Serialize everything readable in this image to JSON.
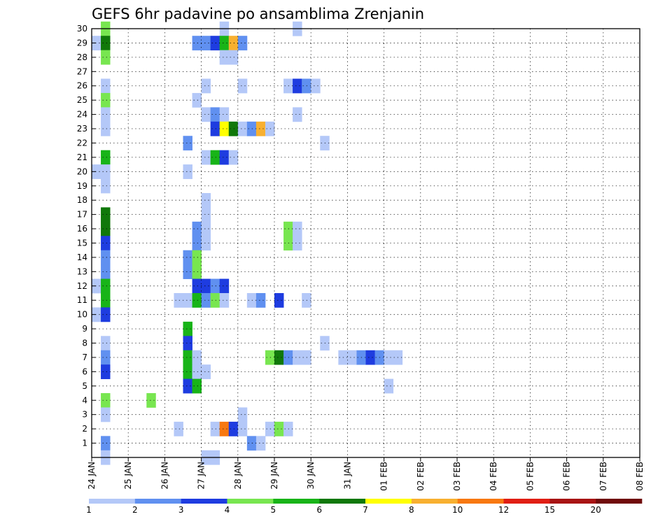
{
  "chart_data": {
    "type": "heatmap",
    "title": "GEFS 6hr padavine po ansamblima Zrenjanin",
    "xlabel": "",
    "ylabel": "",
    "x_tick_labels": [
      "24 JAN",
      "25 JAN",
      "26 JAN",
      "27 JAN",
      "28 JAN",
      "29 JAN",
      "30 JAN",
      "31 JAN",
      "01 FEB",
      "02 FEB",
      "03 FEB",
      "04 FEB",
      "05 FEB",
      "06 FEB",
      "07 FEB",
      "08 FEB"
    ],
    "y_tick_labels": [
      "1",
      "2",
      "3",
      "4",
      "5",
      "6",
      "7",
      "8",
      "9",
      "10",
      "11",
      "12",
      "13",
      "14",
      "15",
      "16",
      "17",
      "18",
      "19",
      "20",
      "21",
      "22",
      "23",
      "24",
      "25",
      "26",
      "27",
      "28",
      "29",
      "30"
    ],
    "x_step_hours": 6,
    "ylim": [
      0,
      30
    ],
    "grid": true,
    "legend": {
      "placement": "bottom",
      "levels": [
        "1",
        "2",
        "3",
        "4",
        "5",
        "6",
        "7",
        "8",
        "10",
        "12",
        "15",
        "20"
      ],
      "colors": [
        "#b4c8f8",
        "#6090f0",
        "#1e3ce0",
        "#78e650",
        "#18b418",
        "#10780a",
        "#ffff00",
        "#f8b030",
        "#f87810",
        "#e01e14",
        "#a81414",
        "#700a0a"
      ]
    },
    "palette": [
      "#b4c8f8",
      "#6090f0",
      "#1e3ce0",
      "#78e650",
      "#18b418",
      "#10780a",
      "#ffff00",
      "#f8b030",
      "#f87810",
      "#e01e14",
      "#a81414",
      "#700a0a"
    ],
    "cells": [
      {
        "member": 30,
        "step": 1,
        "level": 4
      },
      {
        "member": 30,
        "step": 14,
        "level": 1
      },
      {
        "member": 30,
        "step": 22,
        "level": 1
      },
      {
        "member": 29,
        "step": 0,
        "level": 1
      },
      {
        "member": 29,
        "step": 1,
        "level": 6
      },
      {
        "member": 29,
        "step": 11,
        "level": 2
      },
      {
        "member": 29,
        "step": 12,
        "level": 2
      },
      {
        "member": 29,
        "step": 13,
        "level": 3
      },
      {
        "member": 29,
        "step": 14,
        "level": 5
      },
      {
        "member": 29,
        "step": 15,
        "level": 8
      },
      {
        "member": 29,
        "step": 16,
        "level": 2
      },
      {
        "member": 28,
        "step": 1,
        "level": 4
      },
      {
        "member": 28,
        "step": 14,
        "level": 1
      },
      {
        "member": 28,
        "step": 15,
        "level": 1
      },
      {
        "member": 26,
        "step": 1,
        "level": 1
      },
      {
        "member": 26,
        "step": 12,
        "level": 1
      },
      {
        "member": 26,
        "step": 16,
        "level": 1
      },
      {
        "member": 26,
        "step": 21,
        "level": 1
      },
      {
        "member": 26,
        "step": 22,
        "level": 3
      },
      {
        "member": 26,
        "step": 23,
        "level": 2
      },
      {
        "member": 26,
        "step": 24,
        "level": 1
      },
      {
        "member": 25,
        "step": 1,
        "level": 4
      },
      {
        "member": 25,
        "step": 11,
        "level": 1
      },
      {
        "member": 24,
        "step": 1,
        "level": 1
      },
      {
        "member": 24,
        "step": 12,
        "level": 1
      },
      {
        "member": 24,
        "step": 13,
        "level": 2
      },
      {
        "member": 24,
        "step": 14,
        "level": 1
      },
      {
        "member": 24,
        "step": 22,
        "level": 1
      },
      {
        "member": 23,
        "step": 1,
        "level": 1
      },
      {
        "member": 23,
        "step": 13,
        "level": 3
      },
      {
        "member": 23,
        "step": 14,
        "level": 7
      },
      {
        "member": 23,
        "step": 15,
        "level": 6
      },
      {
        "member": 23,
        "step": 16,
        "level": 1
      },
      {
        "member": 23,
        "step": 17,
        "level": 2
      },
      {
        "member": 23,
        "step": 18,
        "level": 8
      },
      {
        "member": 23,
        "step": 19,
        "level": 1
      },
      {
        "member": 22,
        "step": 10,
        "level": 2
      },
      {
        "member": 22,
        "step": 25,
        "level": 1
      },
      {
        "member": 21,
        "step": 1,
        "level": 5
      },
      {
        "member": 21,
        "step": 12,
        "level": 1
      },
      {
        "member": 21,
        "step": 13,
        "level": 5
      },
      {
        "member": 21,
        "step": 14,
        "level": 3
      },
      {
        "member": 21,
        "step": 15,
        "level": 1
      },
      {
        "member": 20,
        "step": 0,
        "level": 1
      },
      {
        "member": 20,
        "step": 1,
        "level": 1
      },
      {
        "member": 20,
        "step": 10,
        "level": 1
      },
      {
        "member": 19,
        "step": 1,
        "level": 1
      },
      {
        "member": 18,
        "step": 12,
        "level": 1
      },
      {
        "member": 17,
        "step": 1,
        "level": 6
      },
      {
        "member": 17,
        "step": 12,
        "level": 1
      },
      {
        "member": 16,
        "step": 1,
        "level": 6
      },
      {
        "member": 16,
        "step": 11,
        "level": 2
      },
      {
        "member": 16,
        "step": 12,
        "level": 1
      },
      {
        "member": 16,
        "step": 21,
        "level": 4
      },
      {
        "member": 16,
        "step": 22,
        "level": 1
      },
      {
        "member": 15,
        "step": 1,
        "level": 3
      },
      {
        "member": 15,
        "step": 11,
        "level": 2
      },
      {
        "member": 15,
        "step": 12,
        "level": 1
      },
      {
        "member": 15,
        "step": 21,
        "level": 4
      },
      {
        "member": 15,
        "step": 22,
        "level": 1
      },
      {
        "member": 14,
        "step": 1,
        "level": 2
      },
      {
        "member": 14,
        "step": 10,
        "level": 2
      },
      {
        "member": 14,
        "step": 11,
        "level": 4
      },
      {
        "member": 13,
        "step": 1,
        "level": 2
      },
      {
        "member": 13,
        "step": 10,
        "level": 2
      },
      {
        "member": 13,
        "step": 11,
        "level": 4
      },
      {
        "member": 12,
        "step": 0,
        "level": 1
      },
      {
        "member": 12,
        "step": 1,
        "level": 5
      },
      {
        "member": 12,
        "step": 11,
        "level": 3
      },
      {
        "member": 12,
        "step": 12,
        "level": 3
      },
      {
        "member": 12,
        "step": 13,
        "level": 2
      },
      {
        "member": 12,
        "step": 14,
        "level": 3
      },
      {
        "member": 11,
        "step": 1,
        "level": 5
      },
      {
        "member": 11,
        "step": 9,
        "level": 1
      },
      {
        "member": 11,
        "step": 10,
        "level": 1
      },
      {
        "member": 11,
        "step": 11,
        "level": 5
      },
      {
        "member": 11,
        "step": 12,
        "level": 2
      },
      {
        "member": 11,
        "step": 13,
        "level": 4
      },
      {
        "member": 11,
        "step": 14,
        "level": 1
      },
      {
        "member": 11,
        "step": 17,
        "level": 1
      },
      {
        "member": 11,
        "step": 18,
        "level": 2
      },
      {
        "member": 11,
        "step": 20,
        "level": 3
      },
      {
        "member": 11,
        "step": 23,
        "level": 1
      },
      {
        "member": 10,
        "step": 0,
        "level": 1
      },
      {
        "member": 10,
        "step": 1,
        "level": 3
      },
      {
        "member": 9,
        "step": 10,
        "level": 5
      },
      {
        "member": 8,
        "step": 1,
        "level": 1
      },
      {
        "member": 8,
        "step": 10,
        "level": 3
      },
      {
        "member": 8,
        "step": 25,
        "level": 1
      },
      {
        "member": 7,
        "step": 1,
        "level": 2
      },
      {
        "member": 7,
        "step": 10,
        "level": 5
      },
      {
        "member": 7,
        "step": 11,
        "level": 1
      },
      {
        "member": 7,
        "step": 19,
        "level": 4
      },
      {
        "member": 7,
        "step": 20,
        "level": 6
      },
      {
        "member": 7,
        "step": 21,
        "level": 2
      },
      {
        "member": 7,
        "step": 22,
        "level": 1
      },
      {
        "member": 7,
        "step": 23,
        "level": 1
      },
      {
        "member": 7,
        "step": 27,
        "level": 1
      },
      {
        "member": 7,
        "step": 28,
        "level": 1
      },
      {
        "member": 7,
        "step": 29,
        "level": 2
      },
      {
        "member": 7,
        "step": 30,
        "level": 3
      },
      {
        "member": 7,
        "step": 31,
        "level": 2
      },
      {
        "member": 7,
        "step": 32,
        "level": 1
      },
      {
        "member": 7,
        "step": 33,
        "level": 1
      },
      {
        "member": 6,
        "step": 1,
        "level": 3
      },
      {
        "member": 6,
        "step": 10,
        "level": 5
      },
      {
        "member": 6,
        "step": 11,
        "level": 1
      },
      {
        "member": 6,
        "step": 12,
        "level": 1
      },
      {
        "member": 5,
        "step": 10,
        "level": 3
      },
      {
        "member": 5,
        "step": 11,
        "level": 5
      },
      {
        "member": 5,
        "step": 32,
        "level": 1
      },
      {
        "member": 4,
        "step": 1,
        "level": 4
      },
      {
        "member": 4,
        "step": 6,
        "level": 4
      },
      {
        "member": 3,
        "step": 1,
        "level": 1
      },
      {
        "member": 3,
        "step": 16,
        "level": 1
      },
      {
        "member": 2,
        "step": 9,
        "level": 1
      },
      {
        "member": 2,
        "step": 13,
        "level": 1
      },
      {
        "member": 2,
        "step": 14,
        "level": 9
      },
      {
        "member": 2,
        "step": 15,
        "level": 3
      },
      {
        "member": 2,
        "step": 16,
        "level": 1
      },
      {
        "member": 2,
        "step": 19,
        "level": 1
      },
      {
        "member": 2,
        "step": 20,
        "level": 4
      },
      {
        "member": 2,
        "step": 21,
        "level": 1
      },
      {
        "member": 1,
        "step": 1,
        "level": 2
      },
      {
        "member": 1,
        "step": 17,
        "level": 2
      },
      {
        "member": 1,
        "step": 18,
        "level": 1
      },
      {
        "member": 0,
        "step": 1,
        "level": 1
      },
      {
        "member": 0,
        "step": 12,
        "level": 1
      },
      {
        "member": 0,
        "step": 13,
        "level": 1
      }
    ]
  }
}
